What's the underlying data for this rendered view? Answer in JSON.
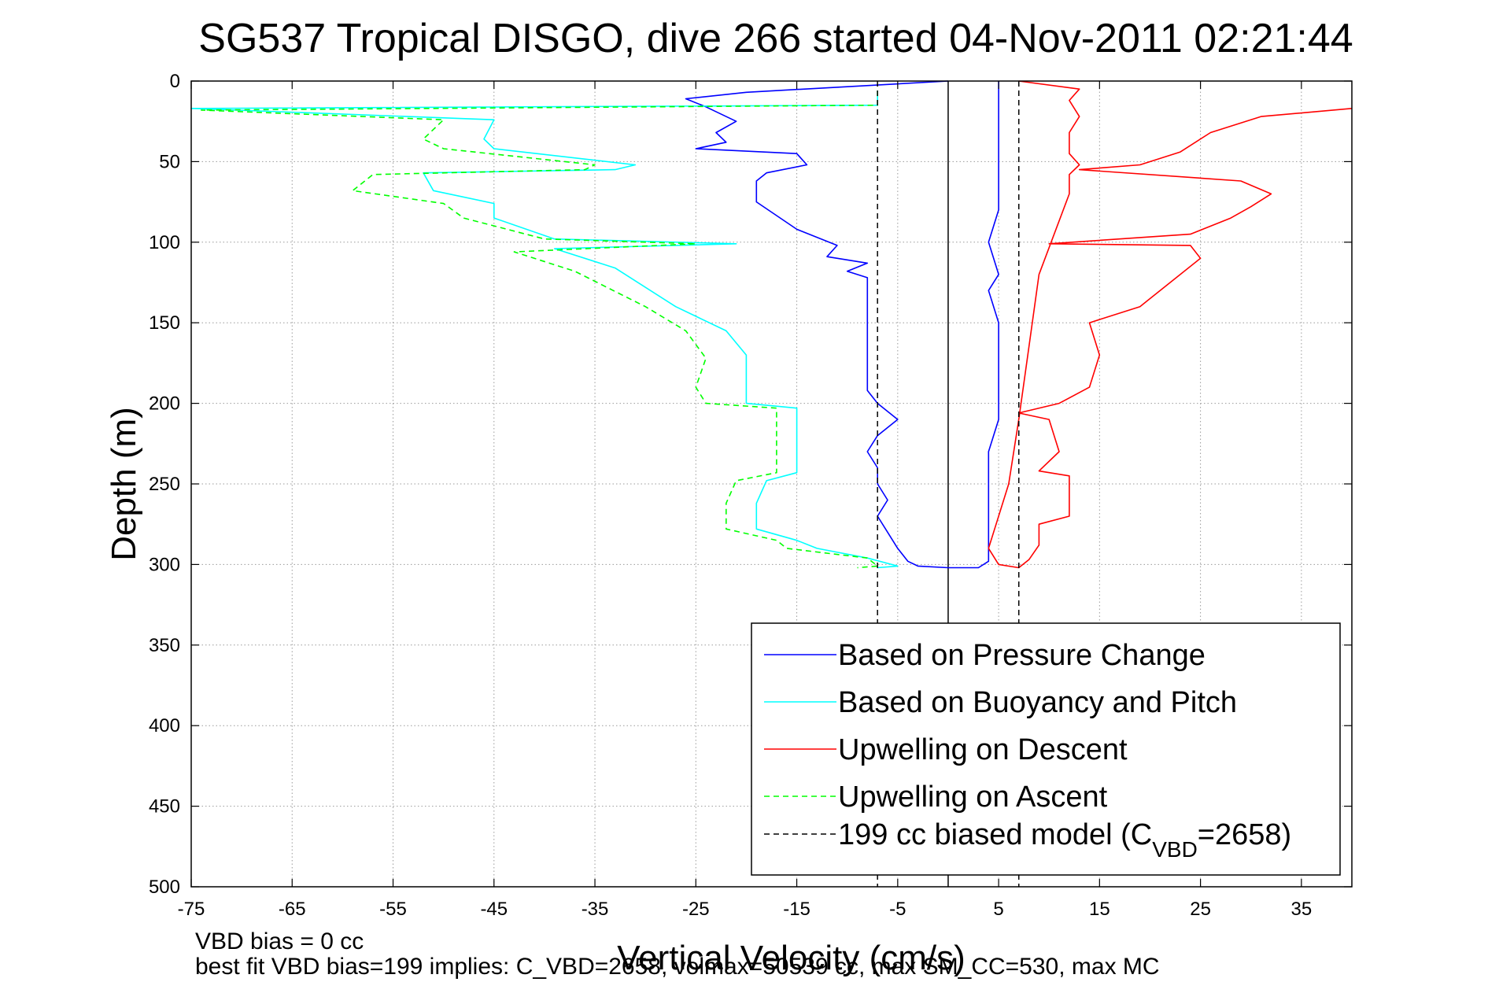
{
  "chart_data": {
    "type": "line",
    "title": "SG537 Tropical DISGO, dive 266 started 04-Nov-2011 02:21:44",
    "xlabel": "Vertical Velocity (cm/s)",
    "ylabel": "Depth (m)",
    "xlim": [
      -75,
      40
    ],
    "ylim": [
      0,
      500
    ],
    "y_reversed": true,
    "grid": true,
    "legend_position": "bottom-right",
    "xticks": [
      "-75",
      "-65",
      "-55",
      "-45",
      "-35",
      "-25",
      "-15",
      "-5",
      "5",
      "15",
      "25",
      "35"
    ],
    "yticks": [
      "0",
      "50",
      "100",
      "150",
      "200",
      "250",
      "300",
      "350",
      "400",
      "450",
      "500"
    ],
    "series": [
      {
        "name": "Based on Pressure Change",
        "color": "#0000ff",
        "style": "solid",
        "points": [
          [
            0,
            0
          ],
          [
            -20,
            7
          ],
          [
            -26,
            11
          ],
          [
            -24,
            16
          ],
          [
            -21,
            25
          ],
          [
            -23,
            32
          ],
          [
            -22,
            38
          ],
          [
            -25,
            42
          ],
          [
            -15,
            45
          ],
          [
            -14,
            52
          ],
          [
            -18,
            57
          ],
          [
            -19,
            62
          ],
          [
            -19,
            75
          ],
          [
            -15,
            92
          ],
          [
            -11,
            102
          ],
          [
            -12,
            109
          ],
          [
            -8,
            113
          ],
          [
            -10,
            118
          ],
          [
            -8,
            122
          ],
          [
            -8,
            140
          ],
          [
            -8,
            160
          ],
          [
            -8,
            180
          ],
          [
            -8,
            192
          ],
          [
            -7,
            200
          ],
          [
            -5,
            210
          ],
          [
            -7,
            220
          ],
          [
            -8,
            230
          ],
          [
            -7,
            240
          ],
          [
            -7,
            250
          ],
          [
            -6,
            260
          ],
          [
            -7,
            270
          ],
          [
            -6,
            280
          ],
          [
            -5,
            290
          ],
          [
            -4,
            298
          ],
          [
            -3,
            301
          ],
          [
            0,
            302
          ],
          [
            3,
            302
          ],
          [
            4,
            298
          ],
          [
            4,
            290
          ],
          [
            4,
            270
          ],
          [
            4,
            250
          ],
          [
            4,
            230
          ],
          [
            5,
            210
          ],
          [
            5,
            190
          ],
          [
            5,
            170
          ],
          [
            5,
            150
          ],
          [
            4,
            130
          ],
          [
            5,
            120
          ],
          [
            4,
            100
          ],
          [
            5,
            80
          ],
          [
            5,
            60
          ],
          [
            5,
            40
          ],
          [
            5,
            20
          ],
          [
            5,
            5
          ],
          [
            5,
            0
          ]
        ]
      },
      {
        "name": "Based on Buoyancy and Pitch",
        "color": "#00ffff",
        "style": "solid",
        "points": [
          [
            -7,
            6
          ],
          [
            -7,
            15
          ],
          [
            -75,
            17
          ],
          [
            -45,
            24
          ],
          [
            -46,
            36
          ],
          [
            -45,
            42
          ],
          [
            -31,
            52
          ],
          [
            -33,
            55
          ],
          [
            -52,
            57
          ],
          [
            -51,
            68
          ],
          [
            -45,
            76
          ],
          [
            -45,
            85
          ],
          [
            -39,
            98
          ],
          [
            -21,
            101
          ],
          [
            -39,
            104
          ],
          [
            -33,
            116
          ],
          [
            -27,
            140
          ],
          [
            -22,
            155
          ],
          [
            -20,
            170
          ],
          [
            -20,
            190
          ],
          [
            -20,
            200
          ],
          [
            -15,
            203
          ],
          [
            -15,
            208
          ],
          [
            -15,
            215
          ],
          [
            -15,
            230
          ],
          [
            -15,
            243
          ],
          [
            -18,
            248
          ],
          [
            -19,
            262
          ],
          [
            -19,
            278
          ],
          [
            -15,
            285
          ],
          [
            -13,
            290
          ],
          [
            -8,
            296
          ],
          [
            -5,
            301
          ],
          [
            -7,
            302
          ]
        ]
      },
      {
        "name": "Upwelling on Descent",
        "color": "#ff0000",
        "style": "solid",
        "points": [
          [
            7,
            0
          ],
          [
            13,
            5
          ],
          [
            12,
            12
          ],
          [
            13,
            22
          ],
          [
            12,
            32
          ],
          [
            12,
            45
          ],
          [
            13,
            52
          ],
          [
            12,
            58
          ],
          [
            12,
            70
          ],
          [
            9,
            120
          ],
          [
            8,
            165
          ],
          [
            7,
            210
          ],
          [
            6,
            250
          ],
          [
            4,
            290
          ],
          [
            5,
            300
          ],
          [
            7,
            302
          ],
          [
            8,
            297
          ],
          [
            9,
            288
          ],
          [
            9,
            275
          ],
          [
            12,
            270
          ],
          [
            12,
            250
          ],
          [
            12,
            245
          ],
          [
            9,
            242
          ],
          [
            11,
            230
          ],
          [
            10,
            210
          ],
          [
            7,
            206
          ],
          [
            11,
            200
          ],
          [
            14,
            190
          ],
          [
            15,
            170
          ],
          [
            14,
            150
          ],
          [
            19,
            140
          ],
          [
            21,
            130
          ],
          [
            25,
            110
          ],
          [
            24,
            102
          ],
          [
            10,
            101
          ],
          [
            24,
            95
          ],
          [
            28,
            85
          ],
          [
            30,
            78
          ],
          [
            32,
            70
          ],
          [
            29,
            62
          ],
          [
            13,
            55
          ],
          [
            19,
            52
          ],
          [
            23,
            44
          ],
          [
            26,
            32
          ],
          [
            31,
            22
          ],
          [
            40,
            17
          ]
        ]
      },
      {
        "name": "Upwelling on Ascent",
        "color": "#00ff00",
        "style": "dashed",
        "points": [
          [
            -7,
            6
          ],
          [
            -7,
            15
          ],
          [
            -74,
            18
          ],
          [
            -50,
            24
          ],
          [
            -52,
            36
          ],
          [
            -50,
            42
          ],
          [
            -35,
            52
          ],
          [
            -36,
            55
          ],
          [
            -57,
            58
          ],
          [
            -59,
            68
          ],
          [
            -50,
            76
          ],
          [
            -48,
            85
          ],
          [
            -40,
            98
          ],
          [
            -25,
            101
          ],
          [
            -43,
            106
          ],
          [
            -37,
            118
          ],
          [
            -30,
            140
          ],
          [
            -26,
            155
          ],
          [
            -24,
            172
          ],
          [
            -25,
            190
          ],
          [
            -24,
            200
          ],
          [
            -17,
            203
          ],
          [
            -17,
            208
          ],
          [
            -17,
            215
          ],
          [
            -17,
            230
          ],
          [
            -17,
            243
          ],
          [
            -21,
            248
          ],
          [
            -22,
            262
          ],
          [
            -22,
            278
          ],
          [
            -17,
            285
          ],
          [
            -16,
            290
          ],
          [
            -8,
            296
          ],
          [
            -7,
            301
          ],
          [
            -9,
            302
          ]
        ]
      },
      {
        "name": "199 cc biased model (C",
        "name_sub": "VBD",
        "name_suffix": "=2658)",
        "color": "#000000",
        "style": "dashed",
        "vertical_lines": [
          -7,
          7
        ]
      }
    ],
    "zero_line": 0,
    "footnotes": [
      "VBD bias = 0 cc",
      "best fit VBD bias=199 implies: C_VBD=2658, volmax=50539 cc, max SM_CC=530, max MC"
    ]
  }
}
